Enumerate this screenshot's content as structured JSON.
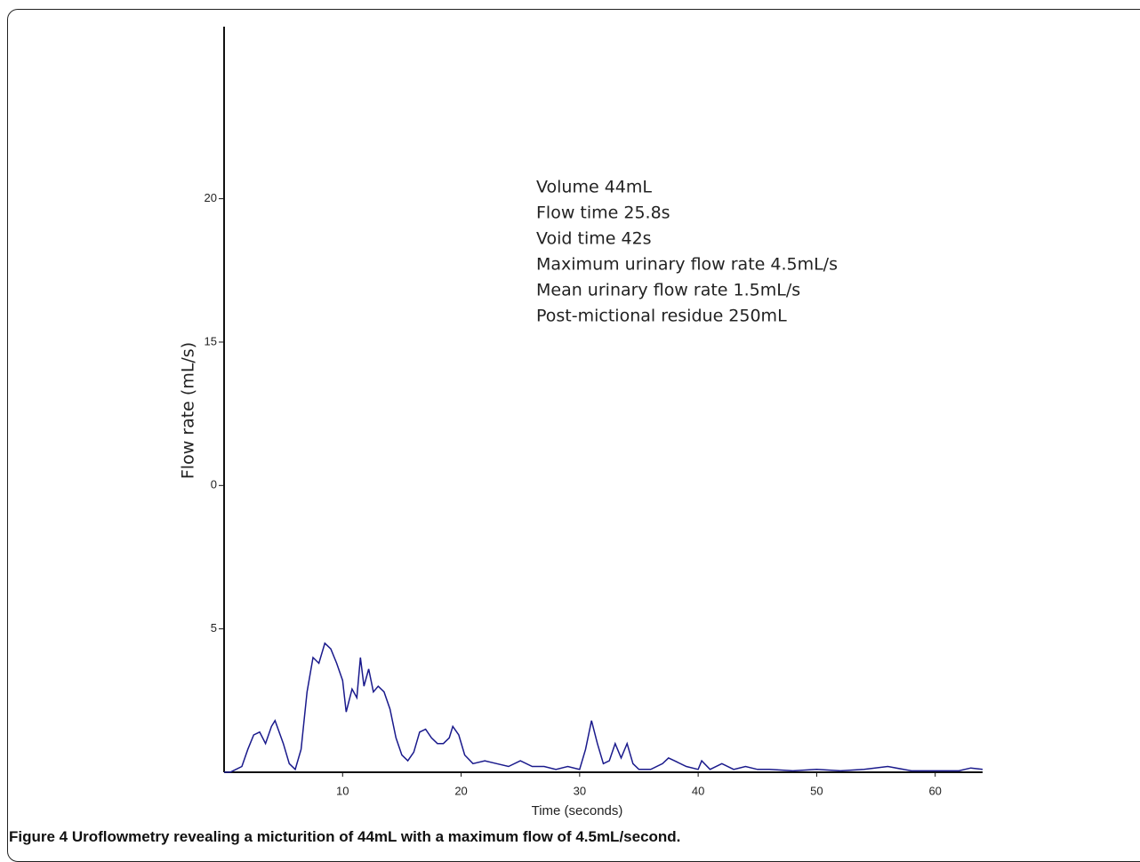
{
  "chart_data": {
    "type": "line",
    "xlabel": "Time (seconds)",
    "ylabel": "Flow rate (mL/s)",
    "annotations": [
      "Volume 44mL",
      "Flow time 25.8s",
      "Void time 42s",
      "Maximum urinary flow rate 4.5mL/s",
      "Mean urinary flow rate 1.5mL/s",
      "Post-mictional residue 250mL"
    ],
    "caption": {
      "label": "Figure 4",
      "text": "Uroflowmetry revealing a micturition of 44mL with a maximum flow of 4.5mL/second."
    },
    "xlim": [
      0,
      64
    ],
    "xticks": [
      10,
      20,
      30,
      40,
      50,
      60
    ],
    "ylim": [
      0,
      26
    ],
    "yticks": [
      5,
      {
        "value": 10,
        "label": "0"
      },
      15,
      20
    ],
    "series": [
      {
        "name": "Flow rate",
        "color": "#1a1a8c",
        "x": [
          0,
          0.5,
          1,
          1.5,
          2,
          2.5,
          3,
          3.5,
          4,
          4.3,
          5,
          5.5,
          6,
          6.5,
          7,
          7.5,
          8,
          8.5,
          9,
          9.5,
          10,
          10.3,
          10.8,
          11.2,
          11.5,
          11.8,
          12.2,
          12.6,
          13,
          13.5,
          14,
          14.5,
          15,
          15.5,
          16,
          16.5,
          17,
          17.5,
          18,
          18.5,
          19,
          19.3,
          19.8,
          20.3,
          21,
          22,
          23,
          24,
          25,
          26,
          27,
          28,
          29,
          30,
          30.5,
          31,
          31.5,
          32,
          32.5,
          33,
          33.5,
          34,
          34.5,
          35,
          36,
          37,
          37.5,
          38,
          39,
          40,
          40.3,
          41,
          42,
          43,
          44,
          45,
          46,
          48,
          50,
          52,
          54,
          56,
          58,
          60,
          62,
          63,
          64
        ],
        "values": [
          0,
          0,
          0.1,
          0.2,
          0.8,
          1.3,
          1.4,
          1.0,
          1.6,
          1.8,
          1.0,
          0.3,
          0.1,
          0.8,
          2.8,
          4.0,
          3.8,
          4.5,
          4.3,
          3.8,
          3.2,
          2.1,
          2.9,
          2.6,
          4.0,
          3.0,
          3.6,
          2.8,
          3.0,
          2.8,
          2.2,
          1.2,
          0.6,
          0.4,
          0.7,
          1.4,
          1.5,
          1.2,
          1.0,
          1.0,
          1.2,
          1.6,
          1.3,
          0.6,
          0.3,
          0.4,
          0.3,
          0.2,
          0.4,
          0.2,
          0.2,
          0.1,
          0.2,
          0.1,
          0.8,
          1.8,
          1.0,
          0.3,
          0.4,
          1.0,
          0.5,
          1.0,
          0.3,
          0.1,
          0.1,
          0.3,
          0.5,
          0.4,
          0.2,
          0.1,
          0.4,
          0.1,
          0.3,
          0.1,
          0.2,
          0.1,
          0.1,
          0.05,
          0.1,
          0.05,
          0.1,
          0.2,
          0.05,
          0.05,
          0.05,
          0.15,
          0.1
        ]
      }
    ]
  }
}
